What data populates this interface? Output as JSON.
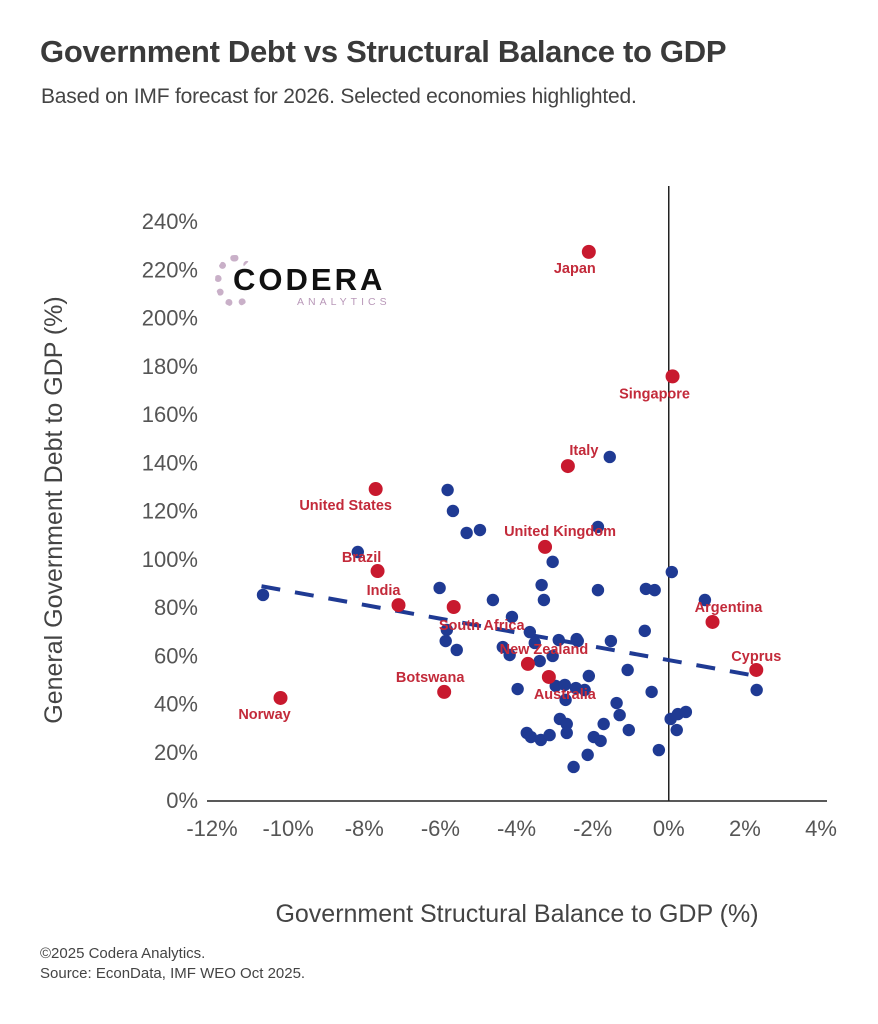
{
  "header": {
    "title": "Government Debt vs Structural Balance to GDP",
    "subtitle": "Based on IMF forecast for 2026. Selected economies highlighted."
  },
  "logo": {
    "name": "CODERA",
    "sub": "ANALYTICS"
  },
  "footer": {
    "copyright": "©2025 Codera Analytics.",
    "source": "Source: EconData, IMF WEO Oct 2025."
  },
  "colors": {
    "highlight": "#c8192e",
    "other": "#1f3a93",
    "trend": "#1f3a93",
    "label": "#c32a3a",
    "axis": "#222222"
  },
  "chart_data": {
    "type": "scatter",
    "title": "Government Debt vs Structural Balance to GDP",
    "subtitle": "Based on IMF forecast for 2026. Selected economies highlighted.",
    "xlabel": "Government Structural Balance to GDP (%)",
    "ylabel": "General Government Debt to GDP (%)",
    "xlim": [
      -12,
      4
    ],
    "ylim": [
      0,
      240
    ],
    "xticks": [
      -12,
      -10,
      -8,
      -6,
      -4,
      -2,
      0,
      2,
      4
    ],
    "xtick_labels": [
      "-12%",
      "-10%",
      "-8%",
      "-6%",
      "-4%",
      "-2%",
      "0%",
      "2%",
      "4%"
    ],
    "yticks": [
      0,
      20,
      40,
      60,
      80,
      100,
      120,
      140,
      160,
      180,
      200,
      220,
      240
    ],
    "ytick_labels": [
      "0%",
      "20%",
      "40%",
      "60%",
      "80%",
      "100%",
      "120%",
      "140%",
      "160%",
      "180%",
      "200%",
      "220%",
      "240%"
    ],
    "grid": false,
    "vertical_reference_line_x": 0,
    "trendline": {
      "style": "dashed",
      "x": [
        -10.7,
        2.3
      ],
      "y": [
        88.6,
        51.4
      ]
    },
    "highlighted": [
      {
        "name": "Japan",
        "x": -2.1,
        "y": 227.2,
        "label_pos": "below-left"
      },
      {
        "name": "Singapore",
        "x": 0.1,
        "y": 175.6,
        "label_pos": "below"
      },
      {
        "name": "Italy",
        "x": -2.65,
        "y": 138.4,
        "label_pos": "above-right"
      },
      {
        "name": "United States",
        "x": -7.7,
        "y": 128.9,
        "label_pos": "below-left"
      },
      {
        "name": "United Kingdom",
        "x": -3.25,
        "y": 104.9,
        "label_pos": "above-right"
      },
      {
        "name": "Brazil",
        "x": -7.65,
        "y": 94.9,
        "label_pos": "above-left"
      },
      {
        "name": "India",
        "x": -7.1,
        "y": 80.8,
        "label_pos": "above-left"
      },
      {
        "name": "South Africa",
        "x": -5.65,
        "y": 80.0,
        "label_pos": "below-right"
      },
      {
        "name": "Argentina",
        "x": 1.15,
        "y": 73.8,
        "label_pos": "above"
      },
      {
        "name": "New Zealand",
        "x": -3.7,
        "y": 56.4,
        "label_pos": "above-right"
      },
      {
        "name": "Australia",
        "x": -3.15,
        "y": 51.0,
        "label_pos": "below-right"
      },
      {
        "name": "Cyprus",
        "x": 2.3,
        "y": 53.9,
        "label_pos": "above"
      },
      {
        "name": "Botswana",
        "x": -5.9,
        "y": 44.8,
        "label_pos": "above-left"
      },
      {
        "name": "Norway",
        "x": -10.2,
        "y": 42.3,
        "label_pos": "below-left"
      }
    ],
    "others": [
      {
        "x": -10.66,
        "y": 85.0
      },
      {
        "x": -8.17,
        "y": 102.8
      },
      {
        "x": -5.81,
        "y": 128.5
      },
      {
        "x": -5.67,
        "y": 119.8
      },
      {
        "x": -5.31,
        "y": 110.7
      },
      {
        "x": -4.96,
        "y": 111.9
      },
      {
        "x": -1.55,
        "y": 142.2
      },
      {
        "x": -1.86,
        "y": 113.2
      },
      {
        "x": -3.05,
        "y": 98.7
      },
      {
        "x": 0.08,
        "y": 94.5
      },
      {
        "x": -6.02,
        "y": 87.9
      },
      {
        "x": -3.34,
        "y": 89.1
      },
      {
        "x": -3.28,
        "y": 82.9
      },
      {
        "x": -1.86,
        "y": 87.0
      },
      {
        "x": -0.6,
        "y": 87.5
      },
      {
        "x": -0.37,
        "y": 87.0
      },
      {
        "x": -4.62,
        "y": 82.9
      },
      {
        "x": 0.95,
        "y": 82.9
      },
      {
        "x": -4.12,
        "y": 75.9
      },
      {
        "x": -5.83,
        "y": 70.5
      },
      {
        "x": -5.86,
        "y": 65.9
      },
      {
        "x": -5.57,
        "y": 62.2
      },
      {
        "x": -3.65,
        "y": 69.6
      },
      {
        "x": -3.52,
        "y": 65.1
      },
      {
        "x": -2.89,
        "y": 66.3
      },
      {
        "x": -2.42,
        "y": 66.7
      },
      {
        "x": -2.39,
        "y": 65.9
      },
      {
        "x": -1.52,
        "y": 65.9
      },
      {
        "x": -0.63,
        "y": 70.1
      },
      {
        "x": -4.36,
        "y": 63.4
      },
      {
        "x": -4.18,
        "y": 60.1
      },
      {
        "x": -3.39,
        "y": 57.6
      },
      {
        "x": -3.05,
        "y": 59.7
      },
      {
        "x": -2.1,
        "y": 51.4
      },
      {
        "x": -1.08,
        "y": 53.9
      },
      {
        "x": -3.97,
        "y": 46.0
      },
      {
        "x": -2.97,
        "y": 47.3
      },
      {
        "x": -2.73,
        "y": 47.7
      },
      {
        "x": -2.44,
        "y": 46.4
      },
      {
        "x": -2.21,
        "y": 45.6
      },
      {
        "x": -2.71,
        "y": 41.5
      },
      {
        "x": -0.45,
        "y": 44.8
      },
      {
        "x": 2.31,
        "y": 45.6
      },
      {
        "x": -1.37,
        "y": 40.2
      },
      {
        "x": -1.29,
        "y": 35.2
      },
      {
        "x": -2.86,
        "y": 33.6
      },
      {
        "x": -2.68,
        "y": 31.5
      },
      {
        "x": -3.73,
        "y": 27.8
      },
      {
        "x": -3.62,
        "y": 26.1
      },
      {
        "x": -3.36,
        "y": 24.9
      },
      {
        "x": -3.13,
        "y": 26.9
      },
      {
        "x": -2.68,
        "y": 27.8
      },
      {
        "x": -1.71,
        "y": 31.5
      },
      {
        "x": -1.97,
        "y": 26.1
      },
      {
        "x": -1.79,
        "y": 24.5
      },
      {
        "x": -1.05,
        "y": 29.0
      },
      {
        "x": 0.05,
        "y": 33.6
      },
      {
        "x": 0.24,
        "y": 35.6
      },
      {
        "x": 0.45,
        "y": 36.5
      },
      {
        "x": 0.21,
        "y": 29.0
      },
      {
        "x": -0.26,
        "y": 20.7
      },
      {
        "x": -2.13,
        "y": 18.7
      },
      {
        "x": -2.5,
        "y": 13.7
      }
    ]
  }
}
